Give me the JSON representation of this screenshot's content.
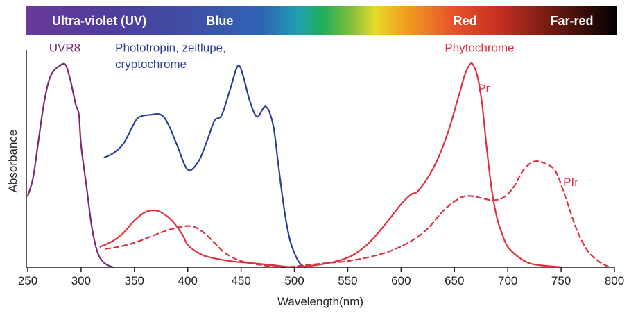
{
  "chart_data": {
    "type": "line",
    "title": "",
    "xlabel": "Wavelength(nm)",
    "ylabel": "Absorbance",
    "xlim": [
      250,
      800
    ],
    "ylim": [
      0,
      1
    ],
    "xticks": [
      250,
      300,
      350,
      400,
      450,
      500,
      550,
      600,
      650,
      700,
      750,
      800
    ],
    "grid": false,
    "spectrum_bands": [
      {
        "label": "Ultra-violet (UV)",
        "x": 317
      },
      {
        "label": "Blue",
        "x": 430
      },
      {
        "label": "Red",
        "x": 660
      },
      {
        "label": "Far-red",
        "x": 760
      }
    ],
    "colors": {
      "uvr8": "#7b2a6e",
      "blue": "#2e3f94",
      "red": "#e0303e",
      "band_text": "#ffffff",
      "axis": "#222222"
    },
    "series": [
      {
        "name": "UVR8",
        "style": "solid",
        "color_key": "uvr8",
        "points": [
          [
            250,
            0.35
          ],
          [
            255,
            0.44
          ],
          [
            260,
            0.62
          ],
          [
            265,
            0.8
          ],
          [
            270,
            0.92
          ],
          [
            275,
            0.97
          ],
          [
            280,
            0.99
          ],
          [
            283,
            1.0
          ],
          [
            286,
            0.99
          ],
          [
            290,
            0.92
          ],
          [
            295,
            0.8
          ],
          [
            298,
            0.75
          ],
          [
            300,
            0.6
          ],
          [
            305,
            0.4
          ],
          [
            310,
            0.2
          ],
          [
            315,
            0.08
          ],
          [
            320,
            0.03
          ],
          [
            325,
            0.01
          ],
          [
            330,
            0.0
          ]
        ]
      },
      {
        "name": "Phototropin, zeitlupe, cryptochrome",
        "style": "solid",
        "color_key": "blue",
        "points": [
          [
            322,
            0.54
          ],
          [
            330,
            0.56
          ],
          [
            340,
            0.61
          ],
          [
            350,
            0.71
          ],
          [
            355,
            0.74
          ],
          [
            365,
            0.75
          ],
          [
            375,
            0.75
          ],
          [
            382,
            0.7
          ],
          [
            390,
            0.6
          ],
          [
            400,
            0.48
          ],
          [
            410,
            0.52
          ],
          [
            418,
            0.62
          ],
          [
            425,
            0.72
          ],
          [
            432,
            0.75
          ],
          [
            440,
            0.88
          ],
          [
            447,
            0.99
          ],
          [
            452,
            0.94
          ],
          [
            458,
            0.82
          ],
          [
            465,
            0.74
          ],
          [
            473,
            0.79
          ],
          [
            480,
            0.7
          ],
          [
            485,
            0.5
          ],
          [
            490,
            0.3
          ],
          [
            495,
            0.15
          ],
          [
            500,
            0.07
          ],
          [
            505,
            0.02
          ],
          [
            510,
            0.0
          ]
        ]
      },
      {
        "name": "Pr",
        "style": "solid",
        "color_key": "red",
        "points": [
          [
            318,
            0.1
          ],
          [
            330,
            0.13
          ],
          [
            340,
            0.17
          ],
          [
            350,
            0.23
          ],
          [
            360,
            0.27
          ],
          [
            368,
            0.28
          ],
          [
            375,
            0.27
          ],
          [
            385,
            0.23
          ],
          [
            395,
            0.16
          ],
          [
            400,
            0.11
          ],
          [
            410,
            0.07
          ],
          [
            420,
            0.05
          ],
          [
            440,
            0.03
          ],
          [
            460,
            0.02
          ],
          [
            480,
            0.01
          ],
          [
            500,
            0.0
          ],
          [
            520,
            0.01
          ],
          [
            540,
            0.03
          ],
          [
            555,
            0.06
          ],
          [
            570,
            0.12
          ],
          [
            585,
            0.21
          ],
          [
            600,
            0.31
          ],
          [
            610,
            0.36
          ],
          [
            615,
            0.37
          ],
          [
            625,
            0.44
          ],
          [
            635,
            0.54
          ],
          [
            645,
            0.68
          ],
          [
            655,
            0.86
          ],
          [
            660,
            0.95
          ],
          [
            665,
            1.0
          ],
          [
            668,
            0.99
          ],
          [
            672,
            0.93
          ],
          [
            676,
            0.8
          ],
          [
            680,
            0.6
          ],
          [
            685,
            0.38
          ],
          [
            690,
            0.24
          ],
          [
            695,
            0.16
          ],
          [
            700,
            0.1
          ],
          [
            710,
            0.05
          ],
          [
            720,
            0.02
          ],
          [
            730,
            0.01
          ],
          [
            750,
            0.0
          ]
        ]
      },
      {
        "name": "Pfr",
        "style": "dashed",
        "color_key": "red",
        "points": [
          [
            323,
            0.09
          ],
          [
            335,
            0.1
          ],
          [
            350,
            0.12
          ],
          [
            365,
            0.15
          ],
          [
            380,
            0.18
          ],
          [
            395,
            0.2
          ],
          [
            405,
            0.2
          ],
          [
            415,
            0.17
          ],
          [
            425,
            0.12
          ],
          [
            435,
            0.07
          ],
          [
            450,
            0.03
          ],
          [
            470,
            0.01
          ],
          [
            490,
            0.0
          ],
          [
            510,
            0.01
          ],
          [
            530,
            0.02
          ],
          [
            550,
            0.03
          ],
          [
            570,
            0.05
          ],
          [
            590,
            0.08
          ],
          [
            610,
            0.13
          ],
          [
            625,
            0.19
          ],
          [
            640,
            0.28
          ],
          [
            655,
            0.34
          ],
          [
            665,
            0.35
          ],
          [
            675,
            0.34
          ],
          [
            685,
            0.33
          ],
          [
            695,
            0.34
          ],
          [
            705,
            0.39
          ],
          [
            715,
            0.48
          ],
          [
            725,
            0.52
          ],
          [
            735,
            0.51
          ],
          [
            745,
            0.47
          ],
          [
            755,
            0.33
          ],
          [
            765,
            0.18
          ],
          [
            775,
            0.08
          ],
          [
            785,
            0.03
          ],
          [
            795,
            0.0
          ]
        ]
      }
    ],
    "annotations": [
      {
        "text": "UVR8",
        "x": 270,
        "y": 1.06,
        "color_key": "uvr8"
      },
      {
        "text": "Phototropin, zeitlupe,",
        "x": 332,
        "y": 1.06,
        "color_key": "blue"
      },
      {
        "text": "cryptochrome",
        "x": 332,
        "y": 0.98,
        "color_key": "blue"
      },
      {
        "text": "Phytochrome",
        "x": 641,
        "y": 1.06,
        "color_key": "red"
      },
      {
        "text": "Pr",
        "x": 672,
        "y": 0.86,
        "color_key": "red"
      },
      {
        "text": "Pfr",
        "x": 752,
        "y": 0.4,
        "color_key": "red"
      }
    ]
  }
}
